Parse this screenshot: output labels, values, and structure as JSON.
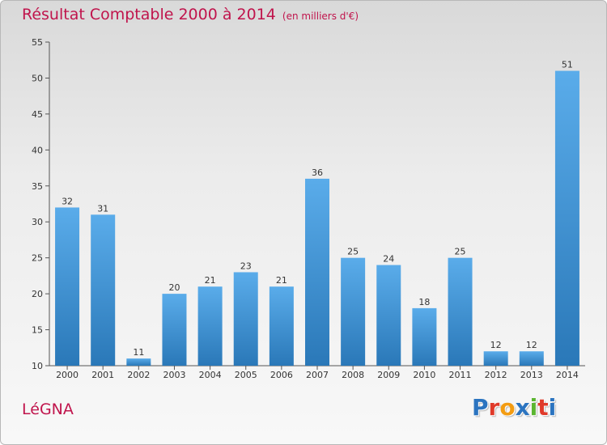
{
  "chart_data": {
    "type": "bar",
    "title": "Résultat Comptable 2000 à 2014",
    "unit_label": "(en milliers d'€)",
    "categories": [
      "2000",
      "2001",
      "2002",
      "2003",
      "2004",
      "2005",
      "2006",
      "2007",
      "2008",
      "2009",
      "2010",
      "2011",
      "2012",
      "2013",
      "2014"
    ],
    "values": [
      32,
      31,
      11,
      20,
      21,
      23,
      21,
      36,
      25,
      24,
      18,
      25,
      12,
      12,
      51
    ],
    "ylim": [
      10,
      55
    ],
    "yticks": [
      10,
      15,
      20,
      25,
      30,
      35,
      40,
      45,
      50,
      55
    ],
    "grid": false,
    "xlabel": "",
    "ylabel": ""
  },
  "footer": {
    "place": "LéGNA",
    "logo_letters": [
      "P",
      "r",
      "o",
      "x",
      "i",
      "t",
      "i"
    ],
    "logo_colors": [
      "#2b74c0",
      "#e03a2a",
      "#f39c12",
      "#2b74c0",
      "#5ab530",
      "#e03a2a",
      "#2b74c0"
    ]
  },
  "colors": {
    "title": "#c0144c",
    "bar_top": "#5aacea",
    "bar_bottom": "#2a78b8",
    "axis": "#555555"
  }
}
